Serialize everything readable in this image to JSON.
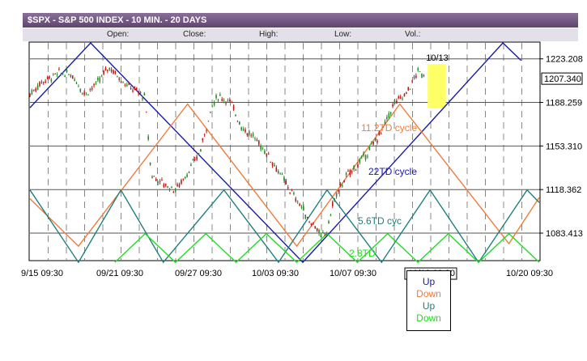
{
  "title_bar": "$SPX - S&P 500 INDEX - 10 MIN. - 20 DAYS",
  "ohlc_labels": [
    "Open:",
    "Close:",
    "High:",
    "Low:",
    "Vol.:"
  ],
  "chart_data": {
    "type": "candlestick",
    "ylim": [
      1062,
      1236
    ],
    "y_ticks": [
      1223.208,
      1188.259,
      1153.31,
      1118.362,
      1083.413
    ],
    "last_price": "1207.340",
    "x_tick_labels": [
      "9/15 09:30",
      "09/21 09:30",
      "09/27 09:30",
      "10/03 09:30",
      "10/07 09:30",
      "10/13 09:30",
      "10/20 09:30"
    ],
    "price_path": [
      [
        0,
        1195
      ],
      [
        2,
        1205
      ],
      [
        5,
        1212
      ],
      [
        7,
        1210
      ],
      [
        9,
        1195
      ],
      [
        11,
        1203
      ],
      [
        13,
        1217
      ],
      [
        16,
        1202
      ],
      [
        18,
        1196
      ],
      [
        19,
        1192
      ],
      [
        20,
        1130
      ],
      [
        22,
        1123
      ],
      [
        24,
        1118
      ],
      [
        26,
        1132
      ],
      [
        28,
        1148
      ],
      [
        30,
        1185
      ],
      [
        31,
        1193
      ],
      [
        33,
        1189
      ],
      [
        35,
        1168
      ],
      [
        37,
        1160
      ],
      [
        39,
        1148
      ],
      [
        41,
        1133
      ],
      [
        43,
        1117
      ],
      [
        45,
        1103
      ],
      [
        46,
        1093
      ],
      [
        47,
        1090
      ],
      [
        48,
        1080
      ],
      [
        49,
        1085
      ],
      [
        50,
        1108
      ],
      [
        52,
        1128
      ],
      [
        54,
        1138
      ],
      [
        56,
        1150
      ],
      [
        58,
        1165
      ],
      [
        60,
        1187
      ],
      [
        62,
        1195
      ],
      [
        64,
        1213
      ],
      [
        65,
        1210
      ]
    ],
    "highlight_box": {
      "label": "10/13",
      "x_start": 65.6,
      "x_end": 68.6,
      "y_top": 1219,
      "y_bottom": 1184,
      "color": "#ffff66"
    },
    "cycle_lines": [
      {
        "label": "22TD cycle",
        "color": "#1a1aa8",
        "points": [
          [
            0,
            1184
          ],
          [
            10,
            1236
          ],
          [
            45,
            1060
          ],
          [
            78,
            1236
          ],
          [
            81,
            1222
          ]
        ]
      },
      {
        "label": "11.2TD cycle",
        "color": "#f07c3a",
        "points": [
          [
            0,
            1111
          ],
          [
            8,
            1073
          ],
          [
            26,
            1187
          ],
          [
            44,
            1073
          ],
          [
            61,
            1187
          ],
          [
            79,
            1075
          ],
          [
            84,
            1112
          ]
        ]
      },
      {
        "label": "5.6TD cyc",
        "color": "#1f7f7f",
        "points": [
          [
            0,
            1118
          ],
          [
            8,
            1060
          ],
          [
            15,
            1118
          ],
          [
            22,
            1060
          ],
          [
            32,
            1118
          ],
          [
            41,
            1060
          ],
          [
            49,
            1118
          ],
          [
            58,
            1060
          ],
          [
            66,
            1118
          ],
          [
            74,
            1060
          ],
          [
            82,
            1118
          ],
          [
            84,
            1108
          ]
        ]
      },
      {
        "label": "2.8TD",
        "color": "#22dd22",
        "points": [
          [
            14,
            1060
          ],
          [
            19,
            1083
          ],
          [
            24,
            1060
          ],
          [
            29,
            1083
          ],
          [
            34,
            1060
          ],
          [
            39,
            1083
          ],
          [
            44,
            1060
          ],
          [
            49,
            1083
          ],
          [
            54,
            1060
          ],
          [
            59,
            1083
          ],
          [
            64,
            1060
          ],
          [
            69,
            1083
          ],
          [
            74,
            1060
          ],
          [
            79,
            1083
          ],
          [
            84,
            1060
          ]
        ]
      }
    ]
  },
  "legend": [
    {
      "label": "Up",
      "color": "#1a1aa8"
    },
    {
      "label": "Down",
      "color": "#f07c3a"
    },
    {
      "label": "Up",
      "color": "#1f7f7f"
    },
    {
      "label": "Down",
      "color": "#22dd22"
    }
  ]
}
